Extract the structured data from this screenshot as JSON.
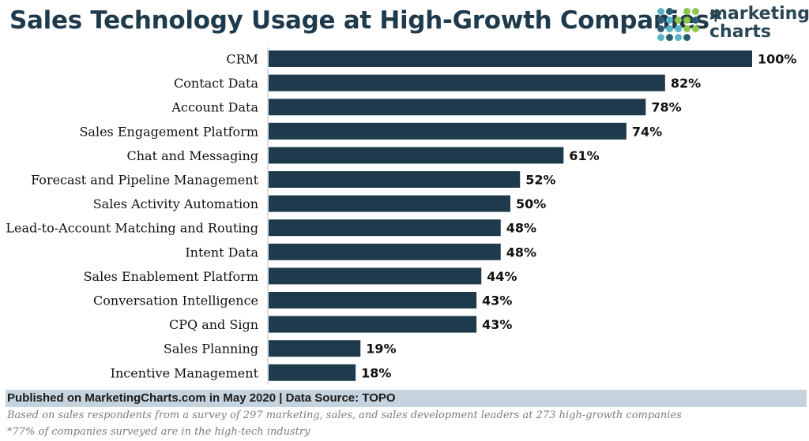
{
  "title": "Sales Technology Usage at High-Growth Companies*",
  "logo": {
    "line1": "marketing",
    "line2": "charts",
    "dot_colors": [
      "#58b3c4",
      "#8fc64f",
      "#2b5d71"
    ]
  },
  "chart_data": {
    "type": "bar",
    "orientation": "horizontal",
    "categories": [
      "CRM",
      "Contact Data",
      "Account Data",
      "Sales Engagement Platform",
      "Chat and Messaging",
      "Forecast and Pipeline Management",
      "Sales Activity Automation",
      "Lead-to-Account Matching and Routing",
      "Intent Data",
      "Sales Enablement Platform",
      "Conversation Intelligence",
      "CPQ and Sign",
      "Sales Planning",
      "Incentive Management"
    ],
    "values": [
      100,
      82,
      78,
      74,
      61,
      52,
      50,
      48,
      48,
      44,
      43,
      43,
      19,
      18
    ],
    "value_labels": [
      "100%",
      "82%",
      "78%",
      "74%",
      "61%",
      "52%",
      "50%",
      "48%",
      "48%",
      "44%",
      "43%",
      "43%",
      "19%",
      "18%"
    ],
    "xlim": [
      0,
      100
    ],
    "bar_color": "#1e3a4c",
    "grid": false,
    "legend": "none"
  },
  "footer": {
    "published": "Published on MarketingCharts.com in May 2020 | Data Source: TOPO",
    "note1": "Based on sales respondents from a survey of 297 marketing, sales, and sales development leaders at 273 high-growth companies",
    "note2": "*77% of companies surveyed are in the high-tech industry"
  }
}
